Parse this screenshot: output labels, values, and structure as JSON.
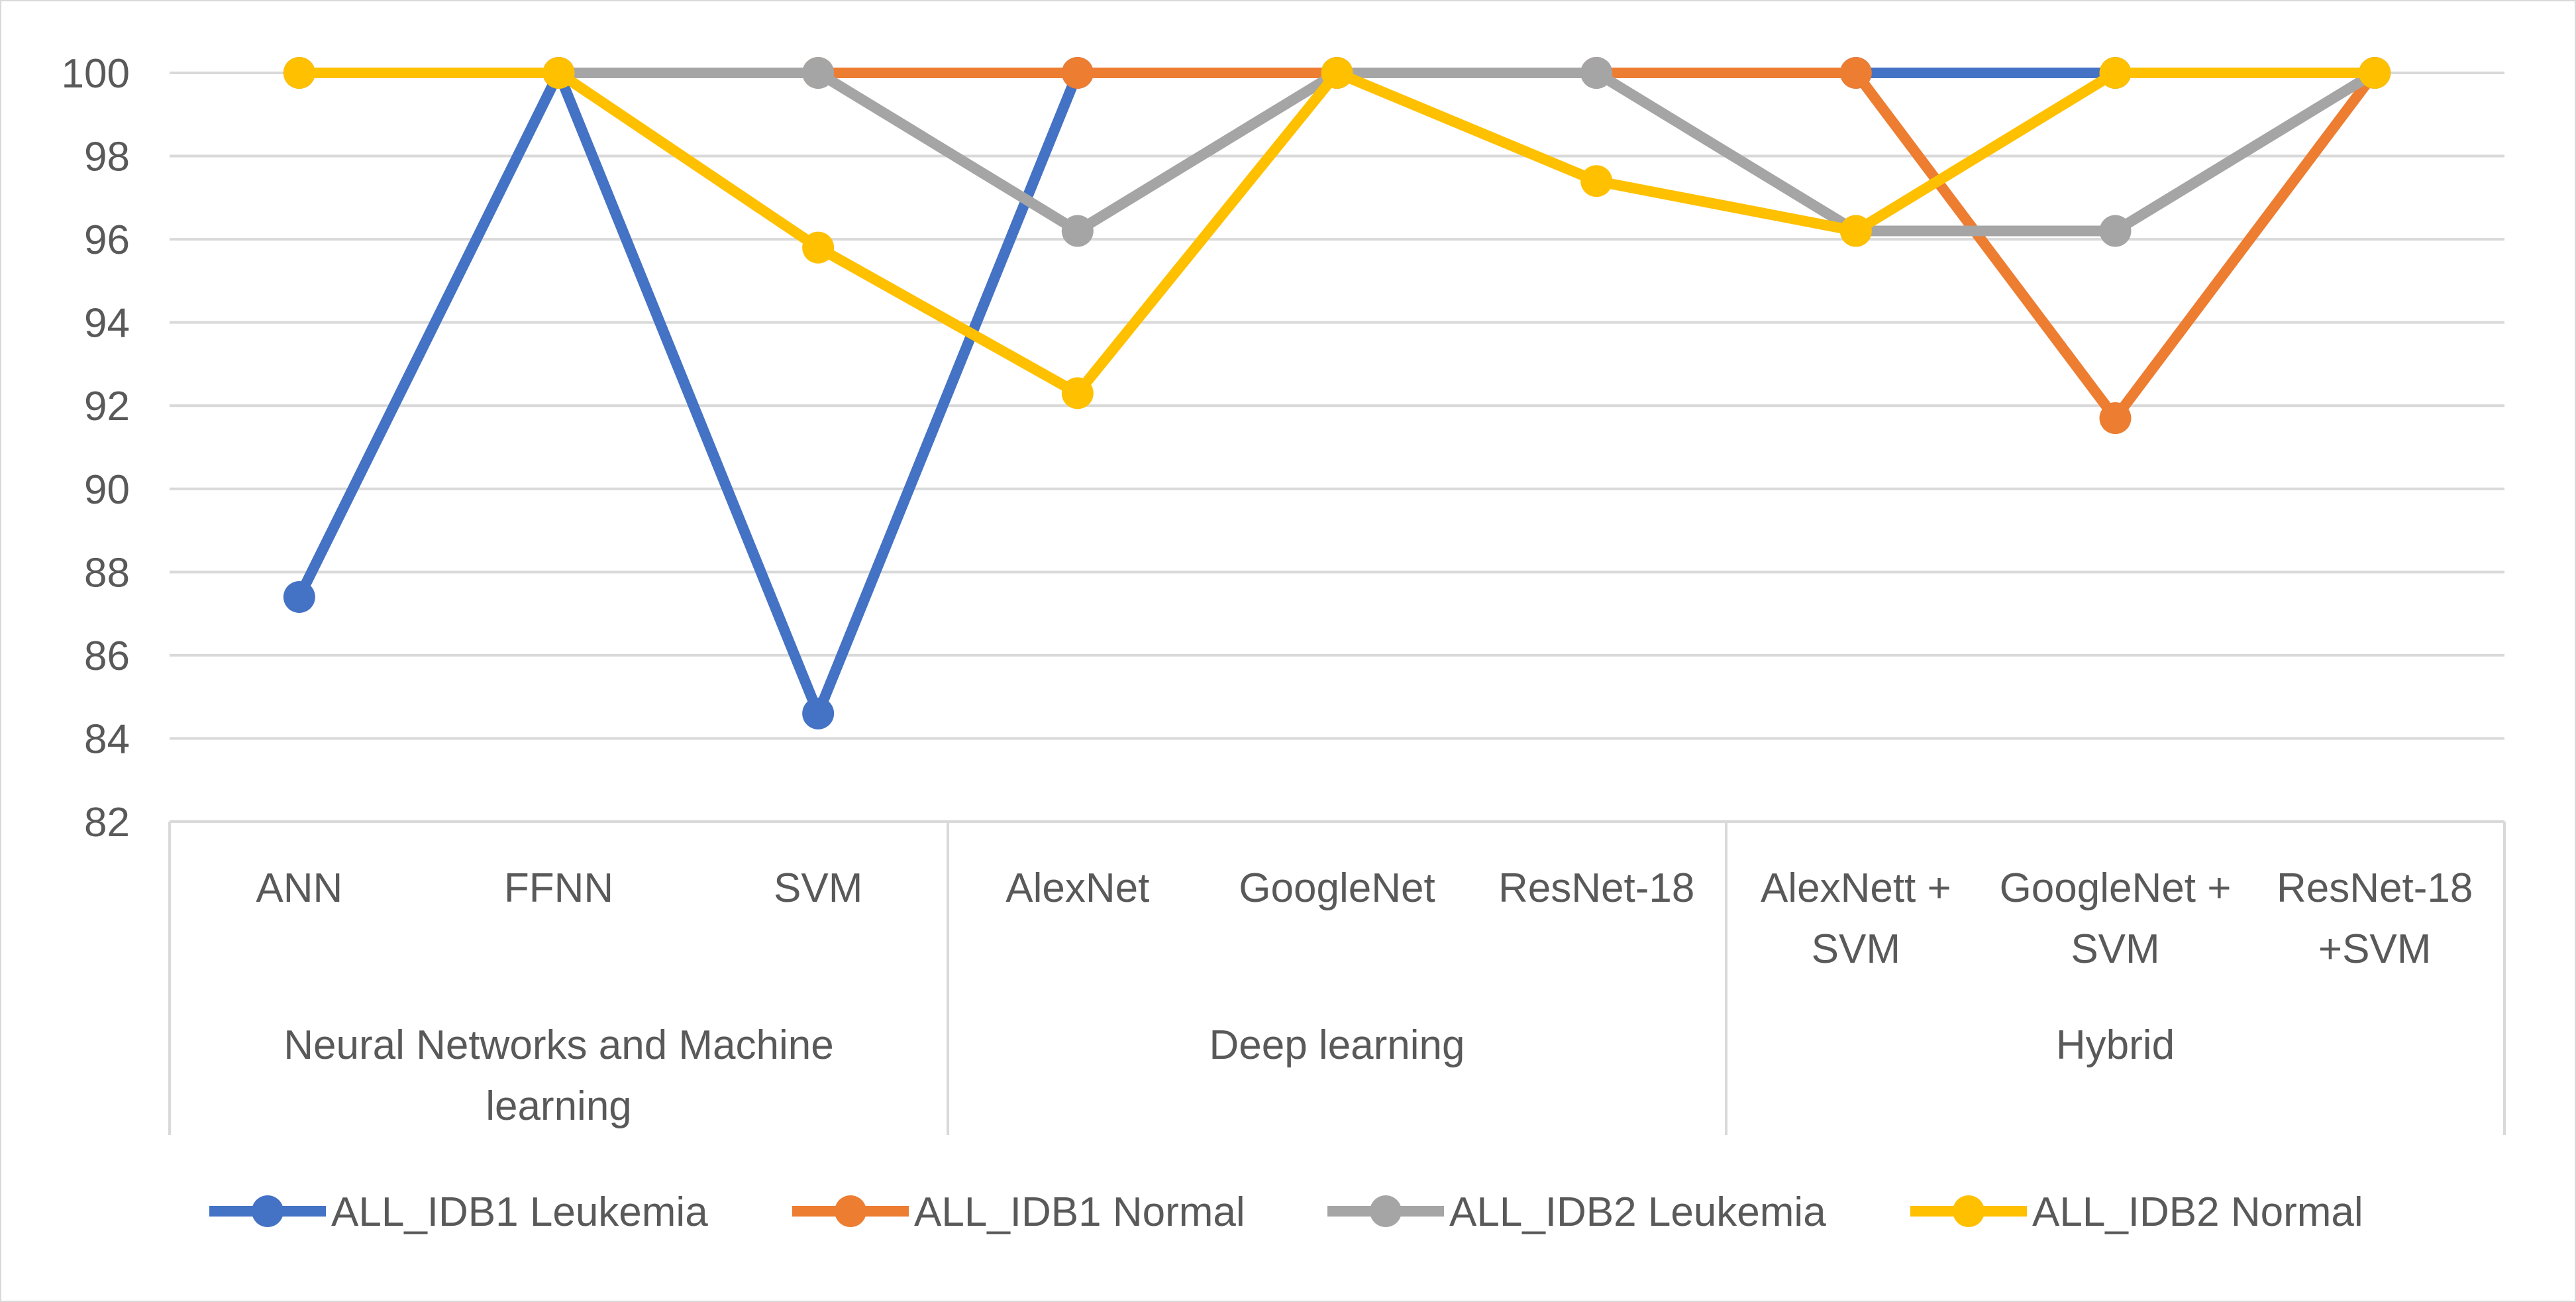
{
  "chart_data": {
    "type": "line",
    "title": "",
    "xlabel": "",
    "ylabel": "",
    "ylim": [
      82,
      100
    ],
    "yticks": [
      "82",
      "84",
      "86",
      "88",
      "90",
      "92",
      "94",
      "96",
      "98",
      "100"
    ],
    "grid": true,
    "legend_position": "bottom",
    "categories": [
      [
        "ANN"
      ],
      [
        "FFNN"
      ],
      [
        "SVM"
      ],
      [
        "AlexNet"
      ],
      [
        "GoogleNet"
      ],
      [
        "ResNet-18"
      ],
      [
        "AlexNett +",
        "SVM"
      ],
      [
        "GoogleNet +",
        "SVM"
      ],
      [
        "ResNet-18",
        "+SVM"
      ]
    ],
    "groups": [
      {
        "label": [
          "Neural Networks and Machine",
          "learning"
        ],
        "span": 3
      },
      {
        "label": [
          "Deep learning"
        ],
        "span": 3
      },
      {
        "label": [
          "Hybrid"
        ],
        "span": 3
      }
    ],
    "series": [
      {
        "name": "ALL_IDB1 Leukemia",
        "color": "#4472c4",
        "values": [
          87.4,
          100,
          84.6,
          100,
          100,
          100,
          100,
          100,
          100
        ]
      },
      {
        "name": "ALL_IDB1 Normal",
        "color": "#ed7d31",
        "values": [
          100,
          100,
          100,
          100,
          100,
          100,
          100,
          91.7,
          100
        ]
      },
      {
        "name": "ALL_IDB2 Leukemia",
        "color": "#a5a5a5",
        "values": [
          100,
          100,
          100,
          96.2,
          100,
          100,
          96.2,
          96.2,
          100
        ]
      },
      {
        "name": "ALL_IDB2 Normal",
        "color": "#ffc000",
        "values": [
          100,
          100,
          95.8,
          92.3,
          100,
          97.4,
          96.2,
          100,
          100
        ]
      }
    ]
  }
}
